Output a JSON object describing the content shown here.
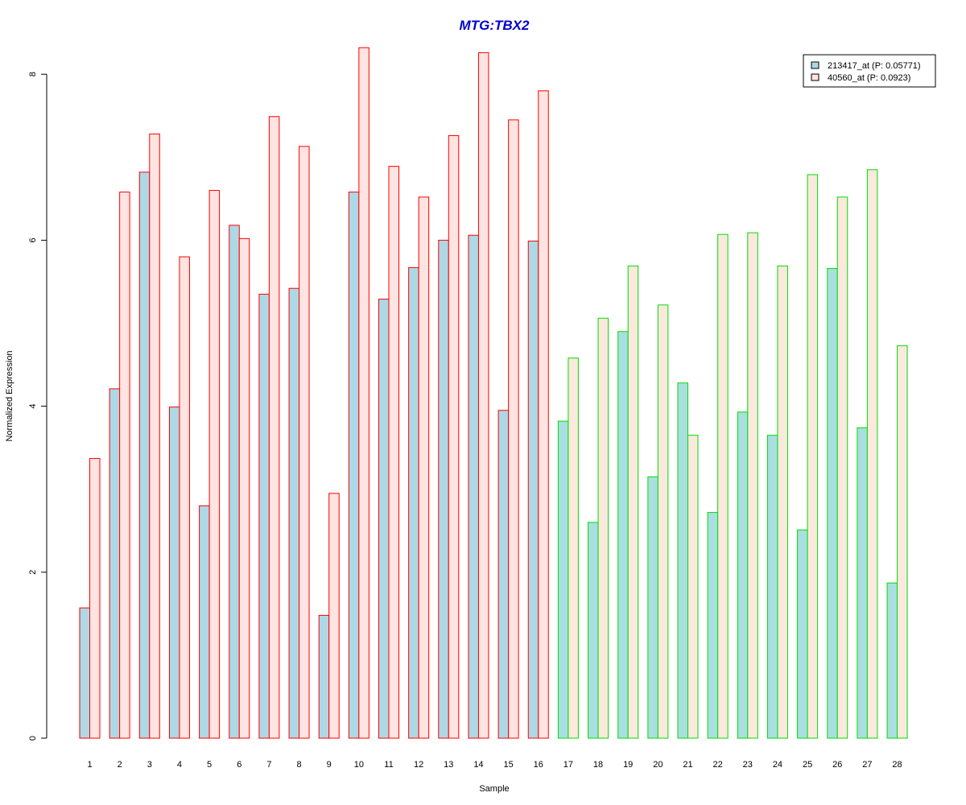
{
  "chart_data": {
    "type": "bar",
    "title": "MTG:TBX2",
    "xlabel": "Sample",
    "ylabel": "Normalized Expression",
    "ylim": [
      0,
      8.5
    ],
    "yticks": [
      "0",
      "2",
      "4",
      "6",
      "8"
    ],
    "categories": [
      "1",
      "2",
      "3",
      "4",
      "5",
      "6",
      "7",
      "8",
      "9",
      "10",
      "11",
      "12",
      "13",
      "14",
      "15",
      "16",
      "17",
      "18",
      "19",
      "20",
      "21",
      "22",
      "23",
      "24",
      "25",
      "26",
      "27",
      "28"
    ],
    "series": [
      {
        "name": "213417_at (P: 0.05771)",
        "values": [
          1.57,
          4.21,
          6.82,
          3.99,
          2.8,
          6.18,
          5.35,
          5.42,
          1.48,
          6.58,
          5.29,
          5.67,
          6.0,
          6.06,
          3.95,
          5.99,
          3.82,
          2.6,
          4.9,
          3.15,
          4.28,
          2.72,
          3.93,
          3.65,
          2.51,
          5.66,
          3.74,
          1.87
        ]
      },
      {
        "name": "40560_at (P: 0.0923)",
        "values": [
          3.37,
          6.58,
          7.28,
          5.8,
          6.6,
          6.02,
          7.49,
          7.13,
          2.95,
          8.32,
          6.89,
          6.52,
          7.26,
          8.26,
          7.45,
          7.8,
          4.58,
          5.06,
          5.69,
          5.22,
          3.65,
          6.07,
          6.09,
          5.69,
          6.79,
          6.52,
          6.85,
          4.73
        ]
      }
    ],
    "group_border_colors": [
      "#ff0000",
      "#ff0000",
      "#ff0000",
      "#ff0000",
      "#ff0000",
      "#ff0000",
      "#ff0000",
      "#ff0000",
      "#ff0000",
      "#ff0000",
      "#ff0000",
      "#ff0000",
      "#ff0000",
      "#ff0000",
      "#ff0000",
      "#ff0000",
      "#00dd00",
      "#00dd00",
      "#00dd00",
      "#00dd00",
      "#00dd00",
      "#00dd00",
      "#00dd00",
      "#00dd00",
      "#00dd00",
      "#00dd00",
      "#00dd00",
      "#00dd00"
    ],
    "series_fill_colors_red": [
      "#add8e6",
      "#ffe4e1"
    ],
    "series_fill_colors_green": [
      "#a9dfe0",
      "#fbe9dd"
    ],
    "title_color": "#0000cd",
    "legend_position": "top-right",
    "grid": false
  }
}
